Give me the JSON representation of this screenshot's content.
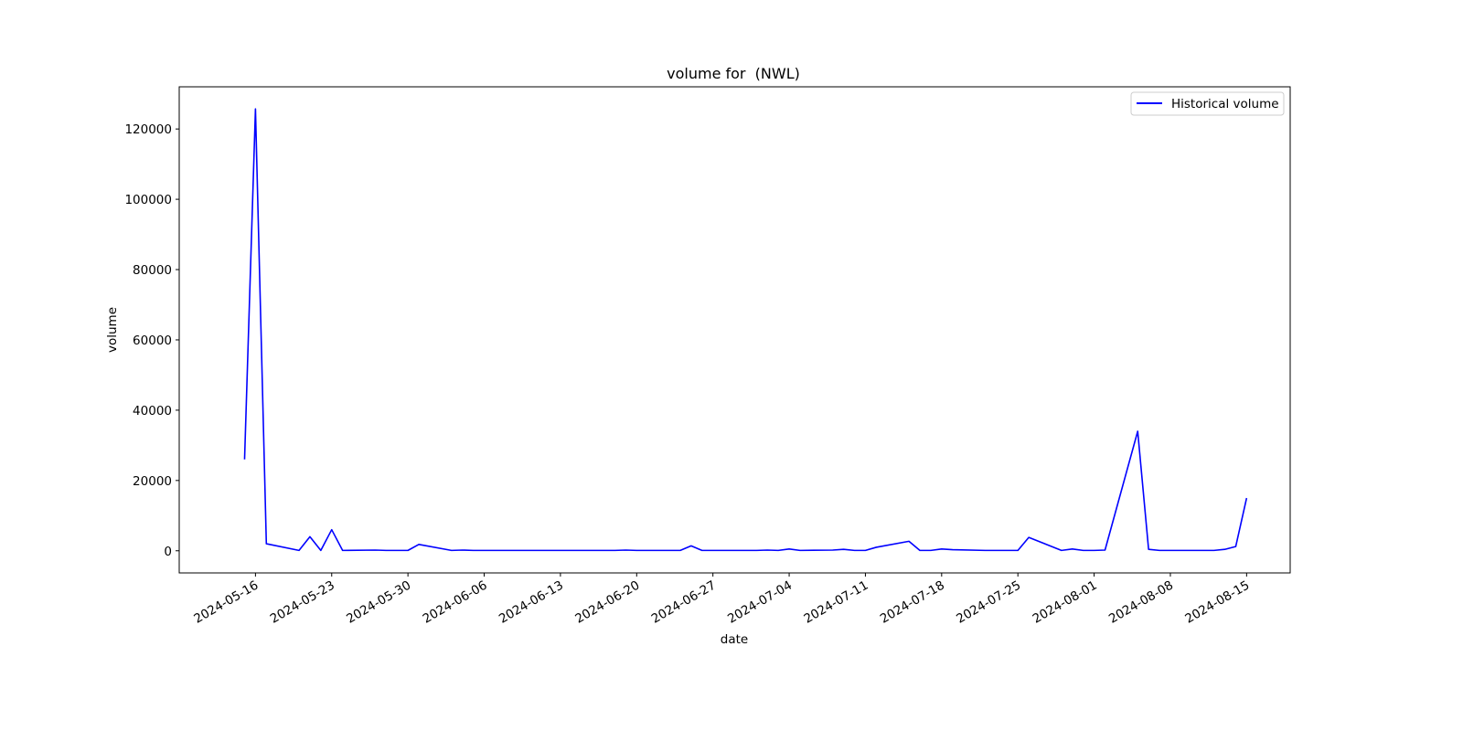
{
  "chart_data": {
    "type": "line",
    "title": "volume for  (NWL)",
    "xlabel": "date",
    "ylabel": "volume",
    "legend_position": "top-right",
    "grid": false,
    "x_range": [
      "2024-05-09",
      "2024-08-19"
    ],
    "ylim": [
      -6300,
      132000
    ],
    "x_ticks": [
      "2024-05-16",
      "2024-05-23",
      "2024-05-30",
      "2024-06-06",
      "2024-06-13",
      "2024-06-20",
      "2024-06-27",
      "2024-07-04",
      "2024-07-11",
      "2024-07-18",
      "2024-07-25",
      "2024-08-01",
      "2024-08-08",
      "2024-08-15"
    ],
    "y_ticks": [
      0,
      20000,
      40000,
      60000,
      80000,
      100000,
      120000
    ],
    "series": [
      {
        "name": "Historical volume",
        "color": "#0000ff",
        "points": [
          [
            "2024-05-15",
            26000
          ],
          [
            "2024-05-16",
            125700
          ],
          [
            "2024-05-17",
            2000
          ],
          [
            "2024-05-20",
            100
          ],
          [
            "2024-05-21",
            4000
          ],
          [
            "2024-05-22",
            100
          ],
          [
            "2024-05-23",
            6000
          ],
          [
            "2024-05-24",
            100
          ],
          [
            "2024-05-27",
            200
          ],
          [
            "2024-05-28",
            100
          ],
          [
            "2024-05-29",
            100
          ],
          [
            "2024-05-30",
            100
          ],
          [
            "2024-05-31",
            1800
          ],
          [
            "2024-06-03",
            100
          ],
          [
            "2024-06-04",
            200
          ],
          [
            "2024-06-05",
            100
          ],
          [
            "2024-06-06",
            100
          ],
          [
            "2024-06-07",
            100
          ],
          [
            "2024-06-10",
            100
          ],
          [
            "2024-06-11",
            100
          ],
          [
            "2024-06-12",
            100
          ],
          [
            "2024-06-13",
            100
          ],
          [
            "2024-06-14",
            100
          ],
          [
            "2024-06-17",
            100
          ],
          [
            "2024-06-18",
            100
          ],
          [
            "2024-06-19",
            200
          ],
          [
            "2024-06-20",
            100
          ],
          [
            "2024-06-21",
            100
          ],
          [
            "2024-06-24",
            100
          ],
          [
            "2024-06-25",
            1400
          ],
          [
            "2024-06-26",
            100
          ],
          [
            "2024-06-27",
            100
          ],
          [
            "2024-06-28",
            100
          ],
          [
            "2024-07-01",
            100
          ],
          [
            "2024-07-02",
            200
          ],
          [
            "2024-07-03",
            100
          ],
          [
            "2024-07-04",
            500
          ],
          [
            "2024-07-05",
            100
          ],
          [
            "2024-07-08",
            200
          ],
          [
            "2024-07-09",
            400
          ],
          [
            "2024-07-10",
            100
          ],
          [
            "2024-07-11",
            100
          ],
          [
            "2024-07-12",
            1000
          ],
          [
            "2024-07-15",
            2700
          ],
          [
            "2024-07-16",
            100
          ],
          [
            "2024-07-17",
            100
          ],
          [
            "2024-07-18",
            500
          ],
          [
            "2024-07-19",
            300
          ],
          [
            "2024-07-22",
            100
          ],
          [
            "2024-07-23",
            100
          ],
          [
            "2024-07-24",
            100
          ],
          [
            "2024-07-25",
            100
          ],
          [
            "2024-07-26",
            3800
          ],
          [
            "2024-07-29",
            100
          ],
          [
            "2024-07-30",
            500
          ],
          [
            "2024-07-31",
            100
          ],
          [
            "2024-08-01",
            100
          ],
          [
            "2024-08-02",
            200
          ],
          [
            "2024-08-05",
            34000
          ],
          [
            "2024-08-06",
            400
          ],
          [
            "2024-08-07",
            100
          ],
          [
            "2024-08-08",
            100
          ],
          [
            "2024-08-09",
            100
          ],
          [
            "2024-08-12",
            100
          ],
          [
            "2024-08-13",
            400
          ],
          [
            "2024-08-14",
            1200
          ],
          [
            "2024-08-15",
            15000
          ]
        ]
      }
    ]
  }
}
